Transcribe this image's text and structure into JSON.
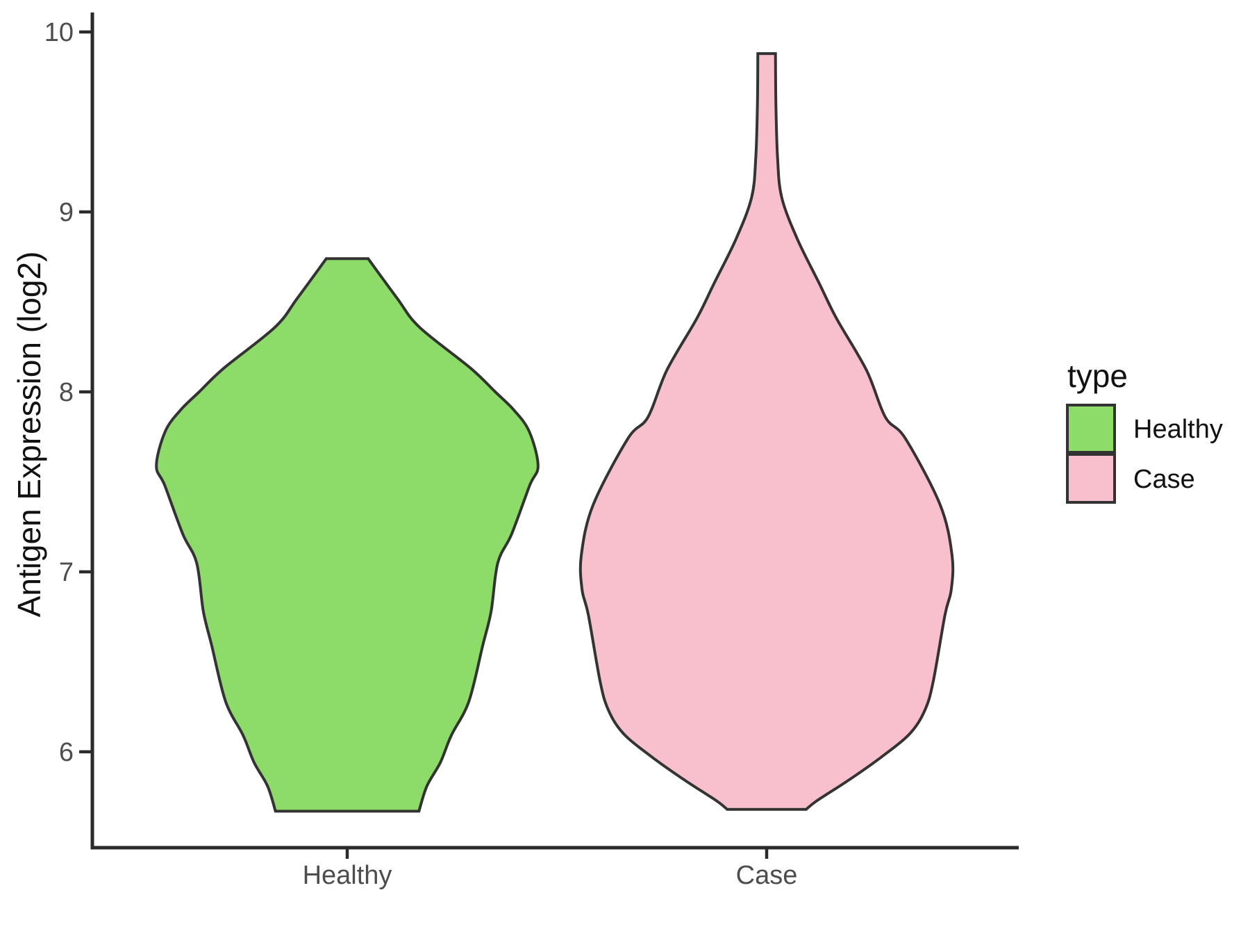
{
  "chart_data": {
    "type": "violin",
    "title": "",
    "xlabel": "",
    "ylabel": "Antigen Expression (log2)",
    "categories": [
      "Healthy",
      "Case"
    ],
    "y_ticks": [
      10,
      9,
      8,
      7,
      6
    ],
    "ylim": [
      5.45,
      10.1
    ],
    "grid": "off",
    "legend": {
      "title": "type",
      "position": "right",
      "entries": [
        {
          "label": "Healthy",
          "color": "#8ddb68"
        },
        {
          "label": "Case",
          "color": "#f8bfcc"
        }
      ]
    },
    "violins": [
      {
        "name": "Healthy",
        "fill": "#8ddb68",
        "outline": "#333333",
        "y_range": [
          5.67,
          8.74
        ],
        "profile": [
          [
            8.74,
            0.05
          ],
          [
            8.52,
            0.119
          ],
          [
            8.36,
            0.172
          ],
          [
            8.13,
            0.295
          ],
          [
            8.0,
            0.353
          ],
          [
            7.9,
            0.397
          ],
          [
            7.78,
            0.434
          ],
          [
            7.59,
            0.455
          ],
          [
            7.48,
            0.435
          ],
          [
            7.21,
            0.392
          ],
          [
            7.05,
            0.359
          ],
          [
            6.78,
            0.343
          ],
          [
            6.59,
            0.323
          ],
          [
            6.28,
            0.29
          ],
          [
            6.09,
            0.248
          ],
          [
            5.94,
            0.222
          ],
          [
            5.81,
            0.19
          ],
          [
            5.67,
            0.171
          ]
        ]
      },
      {
        "name": "Case",
        "fill": "#f8bfcc",
        "outline": "#333333",
        "y_range": [
          5.68,
          9.88
        ],
        "profile": [
          [
            9.88,
            0.021
          ],
          [
            9.6,
            0.022
          ],
          [
            9.3,
            0.026
          ],
          [
            9.08,
            0.036
          ],
          [
            8.85,
            0.073
          ],
          [
            8.6,
            0.126
          ],
          [
            8.41,
            0.166
          ],
          [
            8.12,
            0.238
          ],
          [
            7.86,
            0.283
          ],
          [
            7.74,
            0.331
          ],
          [
            7.37,
            0.414
          ],
          [
            7.09,
            0.442
          ],
          [
            6.9,
            0.44
          ],
          [
            6.76,
            0.425
          ],
          [
            6.39,
            0.397
          ],
          [
            6.23,
            0.377
          ],
          [
            6.1,
            0.341
          ],
          [
            5.97,
            0.273
          ],
          [
            5.84,
            0.194
          ],
          [
            5.73,
            0.121
          ],
          [
            5.68,
            0.094
          ]
        ]
      }
    ]
  }
}
